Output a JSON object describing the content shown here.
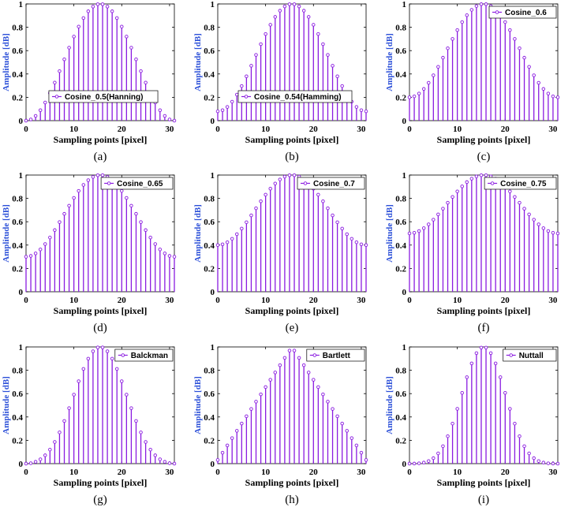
{
  "style": {
    "stem_color": "#8a1be0",
    "axis_color": "#000000",
    "ylabel_color": "#2b4fd8"
  },
  "chart_data": [
    {
      "caption": "(a)",
      "type": "stem",
      "legend": "Cosine_0.5(Hanning)",
      "legend_position": "lower-center",
      "xlabel": "Sampling points [pixel]",
      "ylabel": "Amplitude [dB]",
      "xlim": [
        0,
        31
      ],
      "ylim": [
        0,
        1
      ],
      "xticks": [
        0,
        10,
        20,
        30
      ],
      "yticks": [
        0,
        0.2,
        0.4,
        0.6,
        0.8,
        1
      ],
      "alpha": 0.5,
      "window": "cosine"
    },
    {
      "caption": "(b)",
      "type": "stem",
      "legend": "Cosine_0.54(Hamming)",
      "legend_position": "lower-center",
      "xlabel": "Sampling points [pixel]",
      "ylabel": "Amplitude [dB]",
      "xlim": [
        0,
        31
      ],
      "ylim": [
        0,
        1
      ],
      "xticks": [
        0,
        10,
        20,
        30
      ],
      "yticks": [
        0,
        0.2,
        0.4,
        0.6,
        0.8,
        1
      ],
      "alpha": 0.54,
      "window": "cosine"
    },
    {
      "caption": "(c)",
      "type": "stem",
      "legend": "Cosine_0.6",
      "legend_position": "top-right",
      "xlabel": "Sampling points [pixel]",
      "ylabel": "Amplitude [dB]",
      "xlim": [
        0,
        31
      ],
      "ylim": [
        0,
        1
      ],
      "xticks": [
        0,
        10,
        20,
        30
      ],
      "yticks": [
        0,
        0.2,
        0.4,
        0.6,
        0.8,
        1
      ],
      "alpha": 0.6,
      "window": "cosine"
    },
    {
      "caption": "(d)",
      "type": "stem",
      "legend": "Cosine_0.65",
      "legend_position": "top-right",
      "xlabel": "Sampling points [pixel]",
      "ylabel": "Amplitude [dB]",
      "xlim": [
        0,
        31
      ],
      "ylim": [
        0,
        1
      ],
      "xticks": [
        0,
        10,
        20,
        30
      ],
      "yticks": [
        0,
        0.2,
        0.4,
        0.6,
        0.8,
        1
      ],
      "alpha": 0.65,
      "window": "cosine"
    },
    {
      "caption": "(e)",
      "type": "stem",
      "legend": "Cosine_0.7",
      "legend_position": "top-right",
      "xlabel": "Sampling points [pixel]",
      "ylabel": "Amplitude [dB]",
      "xlim": [
        0,
        31
      ],
      "ylim": [
        0,
        1
      ],
      "xticks": [
        0,
        10,
        20,
        30
      ],
      "yticks": [
        0,
        0.2,
        0.4,
        0.6,
        0.8,
        1
      ],
      "alpha": 0.7,
      "window": "cosine"
    },
    {
      "caption": "(f)",
      "type": "stem",
      "legend": "Cosine_0.75",
      "legend_position": "top-right",
      "xlabel": "Sampling points [pixel]",
      "ylabel": "Amplitude [dB]",
      "xlim": [
        0,
        31
      ],
      "ylim": [
        0,
        1
      ],
      "xticks": [
        0,
        10,
        20,
        30
      ],
      "yticks": [
        0,
        0.2,
        0.4,
        0.6,
        0.8,
        1
      ],
      "alpha": 0.75,
      "window": "cosine"
    },
    {
      "caption": "(g)",
      "type": "stem",
      "legend": "Balckman",
      "legend_position": "top-right",
      "xlabel": "Sampling points [pixel]",
      "ylabel": "Amplitude [dB]",
      "xlim": [
        0,
        31
      ],
      "ylim": [
        0,
        1
      ],
      "xticks": [
        0,
        10,
        20,
        30
      ],
      "yticks": [
        0,
        0.2,
        0.4,
        0.6,
        0.8,
        1
      ],
      "window": "blackman"
    },
    {
      "caption": "(h)",
      "type": "stem",
      "legend": "Bartlett",
      "legend_position": "top-right",
      "xlabel": "Sampling points [pixel]",
      "ylabel": "Amplitude [dB]",
      "xlim": [
        0,
        31
      ],
      "ylim": [
        0,
        1
      ],
      "xticks": [
        0,
        10,
        20,
        30
      ],
      "yticks": [
        0,
        0.2,
        0.4,
        0.6,
        0.8,
        1
      ],
      "window": "bartlett"
    },
    {
      "caption": "(i)",
      "type": "stem",
      "legend": "Nuttall",
      "legend_position": "top-right",
      "xlabel": "Sampling points [pixel]",
      "ylabel": "Amplitude [dB]",
      "xlim": [
        0,
        31
      ],
      "ylim": [
        0,
        1
      ],
      "xticks": [
        0,
        10,
        20,
        30
      ],
      "yticks": [
        0,
        0.2,
        0.4,
        0.6,
        0.8,
        1
      ],
      "window": "nuttall"
    }
  ]
}
